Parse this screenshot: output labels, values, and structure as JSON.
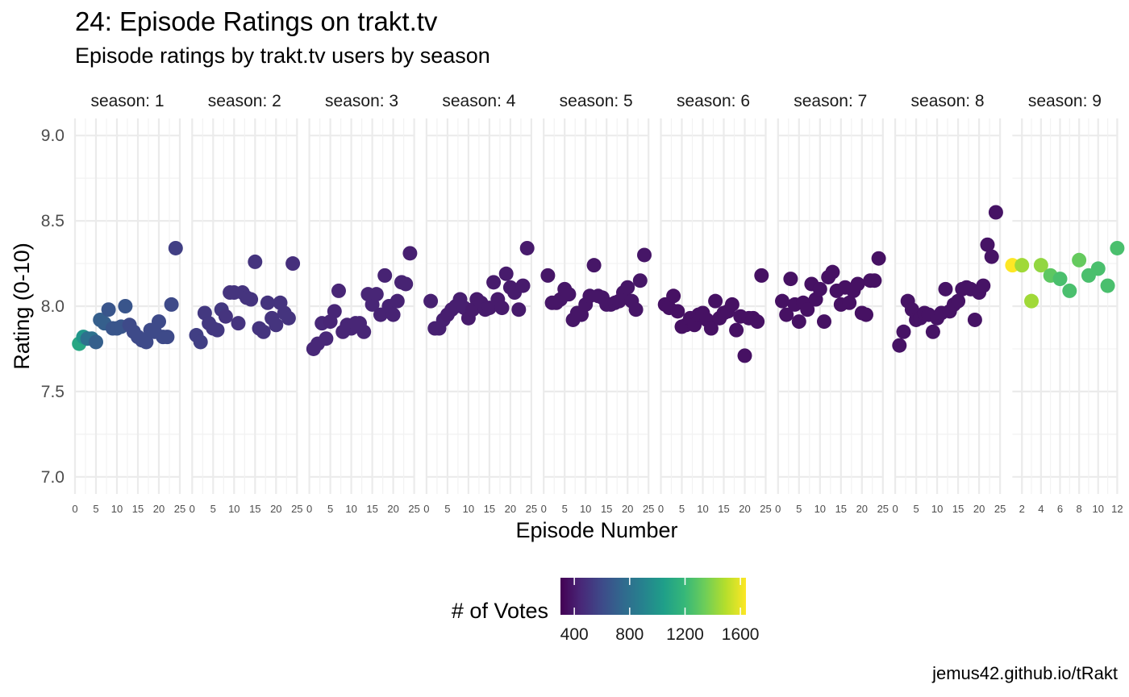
{
  "title": "24: Episode Ratings on trakt.tv",
  "subtitle": "Episode ratings by trakt.tv users by season",
  "caption": "jemus42.github.io/tRakt",
  "chart_data": {
    "type": "scatter",
    "xlabel": "Episode Number",
    "ylabel": "Rating (0-10)",
    "ylim": [
      6.9,
      9.1
    ],
    "yticks": [
      7.0,
      7.5,
      8.0,
      8.5,
      9.0
    ],
    "ytick_labels": [
      "7.0",
      "7.5",
      "8.0",
      "8.5",
      "9.0"
    ],
    "grid": true,
    "legend": {
      "title": "# of Votes",
      "position": "bottom",
      "range": [
        300,
        1640
      ],
      "breaks": [
        400,
        800,
        1200,
        1600
      ],
      "colors": [
        "#440154",
        "#482878",
        "#3E4A89",
        "#31688E",
        "#26828E",
        "#1F9E89",
        "#35B779",
        "#6DCD59",
        "#B4DE2C",
        "#FDE725"
      ]
    },
    "panels": [
      {
        "label": "season: 1",
        "xlim": [
          0,
          25
        ],
        "xticks": [
          0,
          5,
          10,
          15,
          20,
          25
        ],
        "points": [
          [
            1,
            7.78,
            1100
          ],
          [
            2,
            7.82,
            1000
          ],
          [
            3,
            7.81,
            800
          ],
          [
            4,
            7.81,
            800
          ],
          [
            5,
            7.79,
            700
          ],
          [
            6,
            7.92,
            700
          ],
          [
            7,
            7.9,
            700
          ],
          [
            8,
            7.98,
            650
          ],
          [
            9,
            7.87,
            650
          ],
          [
            10,
            7.87,
            650
          ],
          [
            11,
            7.88,
            650
          ],
          [
            12,
            8.0,
            650
          ],
          [
            13,
            7.89,
            600
          ],
          [
            14,
            7.85,
            600
          ],
          [
            15,
            7.82,
            600
          ],
          [
            16,
            7.8,
            600
          ],
          [
            17,
            7.79,
            600
          ],
          [
            18,
            7.86,
            600
          ],
          [
            19,
            7.85,
            600
          ],
          [
            20,
            7.91,
            600
          ],
          [
            21,
            7.82,
            600
          ],
          [
            22,
            7.82,
            600
          ],
          [
            23,
            8.01,
            600
          ],
          [
            24,
            8.34,
            550
          ]
        ]
      },
      {
        "label": "season: 2",
        "xlim": [
          0,
          25
        ],
        "xticks": [
          0,
          5,
          10,
          15,
          20,
          25
        ],
        "points": [
          [
            1,
            7.83,
            550
          ],
          [
            2,
            7.79,
            550
          ],
          [
            3,
            7.96,
            520
          ],
          [
            4,
            7.9,
            520
          ],
          [
            5,
            7.87,
            520
          ],
          [
            6,
            7.86,
            520
          ],
          [
            7,
            7.98,
            520
          ],
          [
            8,
            7.94,
            500
          ],
          [
            9,
            8.08,
            500
          ],
          [
            10,
            8.08,
            500
          ],
          [
            11,
            7.9,
            500
          ],
          [
            12,
            8.08,
            500
          ],
          [
            13,
            8.05,
            500
          ],
          [
            14,
            8.04,
            500
          ],
          [
            15,
            8.26,
            500
          ],
          [
            16,
            7.87,
            500
          ],
          [
            17,
            7.85,
            500
          ],
          [
            18,
            8.02,
            500
          ],
          [
            19,
            7.93,
            500
          ],
          [
            20,
            7.89,
            500
          ],
          [
            21,
            8.02,
            500
          ],
          [
            22,
            7.96,
            500
          ],
          [
            23,
            7.93,
            500
          ],
          [
            24,
            8.25,
            480
          ]
        ]
      },
      {
        "label": "season: 3",
        "xlim": [
          0,
          25
        ],
        "xticks": [
          0,
          5,
          10,
          15,
          20,
          25
        ],
        "points": [
          [
            1,
            7.75,
            450
          ],
          [
            2,
            7.78,
            450
          ],
          [
            3,
            7.9,
            450
          ],
          [
            4,
            7.81,
            450
          ],
          [
            5,
            7.91,
            440
          ],
          [
            6,
            7.97,
            440
          ],
          [
            7,
            8.09,
            440
          ],
          [
            8,
            7.85,
            440
          ],
          [
            9,
            7.89,
            440
          ],
          [
            10,
            7.87,
            440
          ],
          [
            11,
            7.9,
            440
          ],
          [
            12,
            7.9,
            440
          ],
          [
            13,
            7.85,
            440
          ],
          [
            14,
            8.07,
            440
          ],
          [
            15,
            8.01,
            440
          ],
          [
            16,
            8.07,
            440
          ],
          [
            17,
            7.95,
            430
          ],
          [
            18,
            8.18,
            430
          ],
          [
            19,
            8.0,
            430
          ],
          [
            20,
            7.95,
            430
          ],
          [
            21,
            8.03,
            430
          ],
          [
            22,
            8.14,
            430
          ],
          [
            23,
            8.13,
            430
          ],
          [
            24,
            8.31,
            420
          ]
        ]
      },
      {
        "label": "season: 4",
        "xlim": [
          0,
          25
        ],
        "xticks": [
          0,
          5,
          10,
          15,
          20,
          25
        ],
        "points": [
          [
            1,
            8.03,
            420
          ],
          [
            2,
            7.87,
            420
          ],
          [
            3,
            7.87,
            420
          ],
          [
            4,
            7.92,
            420
          ],
          [
            5,
            7.95,
            410
          ],
          [
            6,
            7.98,
            410
          ],
          [
            7,
            8.0,
            410
          ],
          [
            8,
            8.04,
            410
          ],
          [
            9,
            7.99,
            410
          ],
          [
            10,
            7.93,
            400
          ],
          [
            11,
            7.98,
            400
          ],
          [
            12,
            8.04,
            400
          ],
          [
            13,
            8.02,
            400
          ],
          [
            14,
            7.98,
            400
          ],
          [
            15,
            7.99,
            400
          ],
          [
            16,
            8.14,
            400
          ],
          [
            17,
            8.04,
            400
          ],
          [
            18,
            7.99,
            400
          ],
          [
            19,
            8.19,
            400
          ],
          [
            20,
            8.11,
            400
          ],
          [
            21,
            8.08,
            400
          ],
          [
            22,
            7.98,
            400
          ],
          [
            23,
            8.12,
            400
          ],
          [
            24,
            8.34,
            400
          ]
        ]
      },
      {
        "label": "season: 5",
        "xlim": [
          0,
          25
        ],
        "xticks": [
          0,
          5,
          10,
          15,
          20,
          25
        ],
        "points": [
          [
            1,
            8.18,
            380
          ],
          [
            2,
            8.02,
            380
          ],
          [
            3,
            8.02,
            380
          ],
          [
            4,
            8.04,
            380
          ],
          [
            5,
            8.1,
            380
          ],
          [
            6,
            8.07,
            380
          ],
          [
            7,
            7.92,
            380
          ],
          [
            8,
            7.96,
            380
          ],
          [
            9,
            7.95,
            380
          ],
          [
            10,
            8.01,
            380
          ],
          [
            11,
            8.06,
            380
          ],
          [
            12,
            8.24,
            380
          ],
          [
            13,
            8.06,
            380
          ],
          [
            14,
            8.05,
            380
          ],
          [
            15,
            8.01,
            380
          ],
          [
            16,
            8.01,
            380
          ],
          [
            17,
            8.02,
            380
          ],
          [
            18,
            8.03,
            380
          ],
          [
            19,
            8.08,
            380
          ],
          [
            20,
            8.11,
            380
          ],
          [
            21,
            8.03,
            380
          ],
          [
            22,
            7.98,
            380
          ],
          [
            23,
            8.15,
            380
          ],
          [
            24,
            8.3,
            380
          ]
        ]
      },
      {
        "label": "season: 6",
        "xlim": [
          0,
          25
        ],
        "xticks": [
          0,
          5,
          10,
          15,
          20,
          25
        ],
        "points": [
          [
            1,
            8.01,
            360
          ],
          [
            2,
            7.99,
            360
          ],
          [
            3,
            8.06,
            360
          ],
          [
            4,
            7.97,
            360
          ],
          [
            5,
            7.88,
            360
          ],
          [
            6,
            7.89,
            360
          ],
          [
            7,
            7.93,
            360
          ],
          [
            8,
            7.89,
            360
          ],
          [
            9,
            7.95,
            360
          ],
          [
            10,
            7.96,
            360
          ],
          [
            11,
            7.92,
            360
          ],
          [
            12,
            7.87,
            360
          ],
          [
            13,
            8.03,
            360
          ],
          [
            14,
            7.93,
            360
          ],
          [
            15,
            7.96,
            360
          ],
          [
            16,
            7.97,
            360
          ],
          [
            17,
            8.01,
            360
          ],
          [
            18,
            7.86,
            360
          ],
          [
            19,
            7.94,
            360
          ],
          [
            20,
            7.71,
            360
          ],
          [
            21,
            7.93,
            360
          ],
          [
            22,
            7.93,
            360
          ],
          [
            23,
            7.91,
            360
          ],
          [
            24,
            8.18,
            360
          ]
        ]
      },
      {
        "label": "season: 7",
        "xlim": [
          0,
          25
        ],
        "xticks": [
          0,
          5,
          10,
          15,
          20,
          25
        ],
        "points": [
          [
            1,
            8.03,
            360
          ],
          [
            2,
            7.95,
            360
          ],
          [
            3,
            8.16,
            360
          ],
          [
            4,
            8.01,
            360
          ],
          [
            5,
            7.91,
            360
          ],
          [
            6,
            8.02,
            360
          ],
          [
            7,
            7.98,
            360
          ],
          [
            8,
            8.13,
            360
          ],
          [
            9,
            8.04,
            360
          ],
          [
            10,
            8.1,
            360
          ],
          [
            11,
            7.91,
            360
          ],
          [
            12,
            8.17,
            360
          ],
          [
            13,
            8.2,
            360
          ],
          [
            14,
            8.09,
            360
          ],
          [
            15,
            8.01,
            360
          ],
          [
            16,
            8.11,
            360
          ],
          [
            17,
            8.02,
            360
          ],
          [
            18,
            8.09,
            360
          ],
          [
            19,
            8.13,
            360
          ],
          [
            20,
            7.96,
            360
          ],
          [
            21,
            7.95,
            360
          ],
          [
            22,
            8.15,
            360
          ],
          [
            23,
            8.15,
            360
          ],
          [
            24,
            8.28,
            360
          ]
        ]
      },
      {
        "label": "season: 8",
        "xlim": [
          0,
          25
        ],
        "xticks": [
          0,
          5,
          10,
          15,
          20,
          25
        ],
        "points": [
          [
            1,
            7.77,
            370
          ],
          [
            2,
            7.85,
            370
          ],
          [
            3,
            8.03,
            370
          ],
          [
            4,
            7.98,
            370
          ],
          [
            5,
            7.92,
            370
          ],
          [
            6,
            7.93,
            370
          ],
          [
            7,
            7.96,
            370
          ],
          [
            8,
            7.95,
            370
          ],
          [
            9,
            7.85,
            370
          ],
          [
            10,
            7.93,
            370
          ],
          [
            11,
            7.96,
            370
          ],
          [
            12,
            8.1,
            370
          ],
          [
            13,
            7.97,
            370
          ],
          [
            14,
            8.01,
            370
          ],
          [
            15,
            8.03,
            370
          ],
          [
            16,
            8.1,
            370
          ],
          [
            17,
            8.11,
            370
          ],
          [
            18,
            8.1,
            370
          ],
          [
            19,
            7.92,
            370
          ],
          [
            20,
            8.08,
            370
          ],
          [
            21,
            8.12,
            370
          ],
          [
            22,
            8.36,
            370
          ],
          [
            23,
            8.29,
            370
          ],
          [
            24,
            8.55,
            370
          ]
        ]
      },
      {
        "label": "season: 9",
        "xlim": [
          1,
          12
        ],
        "xticks": [
          2,
          4,
          6,
          8,
          10,
          12
        ],
        "points": [
          [
            1,
            8.24,
            1640
          ],
          [
            2,
            8.24,
            1450
          ],
          [
            3,
            8.03,
            1450
          ],
          [
            4,
            8.24,
            1420
          ],
          [
            5,
            8.18,
            1300
          ],
          [
            6,
            8.16,
            1250
          ],
          [
            7,
            8.09,
            1250
          ],
          [
            8,
            8.27,
            1320
          ],
          [
            9,
            8.18,
            1250
          ],
          [
            10,
            8.22,
            1250
          ],
          [
            11,
            8.12,
            1250
          ],
          [
            12,
            8.34,
            1250
          ]
        ]
      }
    ]
  }
}
